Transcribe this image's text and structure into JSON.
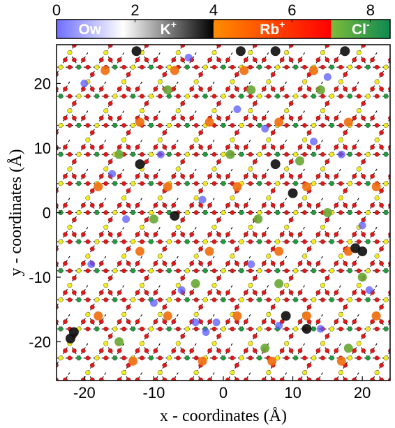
{
  "chart_data": {
    "type": "scatter",
    "xlabel": "x - coordinates (Å)",
    "ylabel": "y - coordinates (Å)",
    "xlim": [
      -24,
      24
    ],
    "ylim": [
      -26,
      26
    ],
    "x_ticks": [
      "-20",
      "-10",
      "0",
      "10",
      "20"
    ],
    "y_ticks": [
      "-20",
      "-10",
      "0",
      "10",
      "20"
    ],
    "grid": false,
    "colorbar": {
      "position": "top",
      "range": [
        0,
        8.5
      ],
      "ticks": [
        "0",
        "2",
        "4",
        "6",
        "8"
      ],
      "segments": [
        {
          "label": "Ow",
          "sup": "",
          "from": 0,
          "to": 1.7,
          "color_start": "#6f6fff",
          "color_end": "#ffffff"
        },
        {
          "label": "K",
          "sup": "+",
          "from": 1.7,
          "to": 4.0,
          "color_start": "#ffffff",
          "color_end": "#000000"
        },
        {
          "label": "Rb",
          "sup": "+",
          "from": 4.0,
          "to": 7.0,
          "color_start": "#ff8c00",
          "color_end": "#ff0000"
        },
        {
          "label": "Cl",
          "sup": "-",
          "from": 7.0,
          "to": 8.5,
          "color_start": "#7dbb3a",
          "color_end": "#0e8a52"
        }
      ]
    },
    "lattice": {
      "a": 5.2,
      "bond_color": "#000000",
      "oxygen_color": "#e01818",
      "tetra_color": "#f2ec1b",
      "octa_color": "#1f9c3a"
    },
    "series": [
      {
        "name": "Rb+",
        "color": "#f07010",
        "points": [
          [
            -12,
            14
          ],
          [
            -2,
            14
          ],
          [
            8,
            14
          ],
          [
            18,
            14
          ],
          [
            -18,
            4
          ],
          [
            -8,
            4
          ],
          [
            2,
            4
          ],
          [
            12,
            4
          ],
          [
            22,
            4
          ],
          [
            -12,
            -6
          ],
          [
            -2,
            -6
          ],
          [
            8,
            -6
          ],
          [
            18,
            -6
          ],
          [
            -18,
            -16
          ],
          [
            -8,
            -16
          ],
          [
            2,
            -16
          ],
          [
            12,
            -16
          ],
          [
            22,
            -16
          ],
          [
            -17,
            22
          ],
          [
            -7,
            22
          ],
          [
            3,
            22
          ],
          [
            13,
            22
          ],
          [
            -13,
            -23
          ],
          [
            -3,
            -23
          ],
          [
            7,
            -23
          ],
          [
            17,
            -23
          ]
        ]
      },
      {
        "name": "K+",
        "color": "#111111",
        "points": [
          [
            -12.5,
            25
          ],
          [
            2.5,
            25
          ],
          [
            7.5,
            25
          ],
          [
            17.5,
            25
          ],
          [
            -12,
            7.5
          ],
          [
            7.5,
            7.5
          ],
          [
            10,
            3
          ],
          [
            -7,
            -0.5
          ],
          [
            19,
            -5.5
          ],
          [
            20,
            -6
          ],
          [
            9,
            -16
          ],
          [
            12,
            -18
          ],
          [
            -21.5,
            -18.5
          ],
          [
            -22,
            -19.5
          ]
        ]
      },
      {
        "name": "Ow",
        "color": "#5a5aff",
        "points": [
          [
            -2.5,
            -18.5
          ],
          [
            -4,
            -17
          ],
          [
            -1,
            -17
          ],
          [
            8,
            -17.5
          ],
          [
            14,
            -18
          ],
          [
            -6,
            -12
          ],
          [
            -14,
            -1
          ],
          [
            -9,
            9
          ],
          [
            -16,
            6
          ],
          [
            6,
            13
          ],
          [
            13,
            11
          ],
          [
            2,
            16
          ],
          [
            -20,
            20
          ],
          [
            -5,
            24
          ],
          [
            15,
            21
          ],
          [
            20,
            -2
          ],
          [
            4,
            -8
          ],
          [
            -10,
            -14
          ],
          [
            21,
            -12
          ],
          [
            -3,
            2
          ],
          [
            17,
            9
          ],
          [
            -19,
            -8
          ]
        ]
      },
      {
        "name": "Cl-",
        "color": "#6aa836",
        "points": [
          [
            -8,
            19
          ],
          [
            4,
            19
          ],
          [
            14,
            19
          ],
          [
            -15,
            9
          ],
          [
            1,
            9
          ],
          [
            11,
            8
          ],
          [
            -10,
            -1
          ],
          [
            5,
            -1
          ],
          [
            15,
            0
          ],
          [
            -4,
            -11
          ],
          [
            8,
            -11
          ],
          [
            20,
            -10
          ],
          [
            -15,
            -20
          ],
          [
            6,
            -21
          ],
          [
            18,
            -21
          ]
        ]
      }
    ]
  }
}
